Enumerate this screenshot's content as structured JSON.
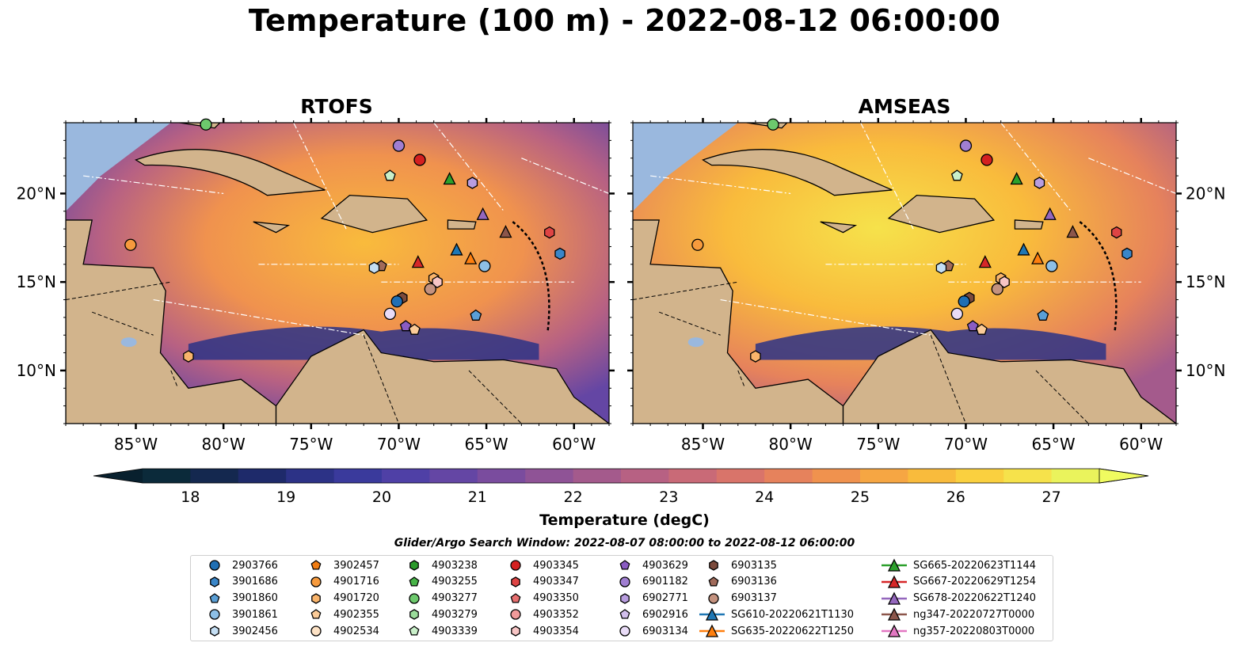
{
  "title": "Temperature (100 m) - 2022-08-12 06:00:00",
  "panels": [
    {
      "title": "RTOFS"
    },
    {
      "title": "AMSEAS"
    }
  ],
  "chart_data": {
    "type": "heatmap",
    "xaxis": {
      "ticks": [
        -85,
        -80,
        -75,
        -70,
        -65,
        -60
      ],
      "tick_labels": [
        "85°W",
        "80°W",
        "75°W",
        "70°W",
        "65°W",
        "60°W"
      ],
      "range": [
        -89,
        -58
      ]
    },
    "yaxis": {
      "ticks": [
        10,
        15,
        20
      ],
      "tick_labels": [
        "10°N",
        "15°N",
        "20°N"
      ],
      "range": [
        7,
        24
      ]
    },
    "colorbar": {
      "label": "Temperature (degC)",
      "min": 17.5,
      "max": 27.5,
      "ticks": [
        18,
        19,
        20,
        21,
        22,
        23,
        24,
        25,
        26,
        27
      ],
      "colors": [
        "#0b2a3a",
        "#14284f",
        "#1e2a6a",
        "#2c3286",
        "#3a3a9c",
        "#4f40a6",
        "#6446a4",
        "#7a4c9e",
        "#8f5396",
        "#a45a8c",
        "#b76183",
        "#c96a77",
        "#d9746a",
        "#e6825c",
        "#f0924e",
        "#f6a643",
        "#f9bb3c",
        "#fad03f",
        "#f6e24b",
        "#eaf35c"
      ]
    },
    "legend_title": "Glider/Argo Search Window: 2022-08-07 08:00:00 to 2022-08-12 06:00:00",
    "legend": [
      {
        "label": "2903766",
        "marker": "circle",
        "color": "#1f6fb4"
      },
      {
        "label": "3901686",
        "marker": "hexagon",
        "color": "#3a86c8"
      },
      {
        "label": "3901860",
        "marker": "pentagon",
        "color": "#5a9fd6"
      },
      {
        "label": "3901861",
        "marker": "circle",
        "color": "#8dbfe6"
      },
      {
        "label": "3902456",
        "marker": "hexagon",
        "color": "#c4def3"
      },
      {
        "label": "3902457",
        "marker": "pentagon",
        "color": "#f07c12"
      },
      {
        "label": "4901716",
        "marker": "circle",
        "color": "#f69a3d"
      },
      {
        "label": "4901720",
        "marker": "hexagon",
        "color": "#f9b46b"
      },
      {
        "label": "4902355",
        "marker": "pentagon",
        "color": "#fbcb98"
      },
      {
        "label": "4902534",
        "marker": "circle",
        "color": "#fde2c5"
      },
      {
        "label": "4903238",
        "marker": "hexagon",
        "color": "#2a9a2a"
      },
      {
        "label": "4903255",
        "marker": "pentagon",
        "color": "#47b347"
      },
      {
        "label": "4903277",
        "marker": "circle",
        "color": "#6dc96d"
      },
      {
        "label": "4903279",
        "marker": "hexagon",
        "color": "#9bdc9b"
      },
      {
        "label": "4903339",
        "marker": "pentagon",
        "color": "#c9efc9"
      },
      {
        "label": "4903345",
        "marker": "circle",
        "color": "#d42020"
      },
      {
        "label": "4903347",
        "marker": "hexagon",
        "color": "#de4444"
      },
      {
        "label": "4903350",
        "marker": "pentagon",
        "color": "#e76f6f"
      },
      {
        "label": "4903352",
        "marker": "circle",
        "color": "#f09a9a"
      },
      {
        "label": "4903354",
        "marker": "hexagon",
        "color": "#f7c5c5"
      },
      {
        "label": "4903629",
        "marker": "pentagon",
        "color": "#8a5cc2"
      },
      {
        "label": "6901182",
        "marker": "circle",
        "color": "#a07ed1"
      },
      {
        "label": "6902771",
        "marker": "hexagon",
        "color": "#b89ddf"
      },
      {
        "label": "6902916",
        "marker": "pentagon",
        "color": "#d2bfec"
      },
      {
        "label": "6903134",
        "marker": "circle",
        "color": "#e9dcf7"
      },
      {
        "label": "6903135",
        "marker": "hexagon",
        "color": "#7b4a3c"
      },
      {
        "label": "6903136",
        "marker": "pentagon",
        "color": "#a06a5a"
      },
      {
        "label": "6903137",
        "marker": "circle",
        "color": "#c4927f"
      },
      {
        "label": "SG610-20220621T1130",
        "marker": "triangle-line",
        "color": "#1f77b4"
      },
      {
        "label": "SG635-20220622T1250",
        "marker": "triangle-line",
        "color": "#ff7f0e"
      },
      {
        "label": "SG665-20220623T1144",
        "marker": "triangle-line",
        "color": "#2ca02c"
      },
      {
        "label": "SG667-20220629T1254",
        "marker": "triangle-line",
        "color": "#d62728"
      },
      {
        "label": "SG678-20220622T1240",
        "marker": "triangle-line",
        "color": "#9467bd"
      },
      {
        "label": "ng347-20220727T0000",
        "marker": "triangle-line",
        "color": "#8c564b"
      },
      {
        "label": "ng357-20220803T0000",
        "marker": "triangle-line",
        "color": "#e377c2"
      }
    ],
    "platforms": [
      {
        "id": "4903277",
        "lon": -81.0,
        "lat": 23.9
      },
      {
        "id": "6901182",
        "lon": -70.0,
        "lat": 22.7
      },
      {
        "id": "4903345",
        "lon": -68.8,
        "lat": 21.9
      },
      {
        "id": "4903339",
        "lon": -70.5,
        "lat": 21.0
      },
      {
        "id": "6902771",
        "lon": -65.8,
        "lat": 20.6
      },
      {
        "id": "SG665-20220623T1144",
        "lon": -67.1,
        "lat": 20.8
      },
      {
        "id": "SG678-20220622T1240",
        "lon": -65.2,
        "lat": 18.8
      },
      {
        "id": "ng347-20220727T0000",
        "lon": -63.9,
        "lat": 17.8
      },
      {
        "id": "4903347",
        "lon": -61.4,
        "lat": 17.8
      },
      {
        "id": "4901716",
        "lon": -85.3,
        "lat": 17.1
      },
      {
        "id": "SG610-20220621T1130",
        "lon": -66.7,
        "lat": 16.8
      },
      {
        "id": "3901686",
        "lon": -60.8,
        "lat": 16.6
      },
      {
        "id": "SG635-20220622T1250",
        "lon": -65.9,
        "lat": 16.3
      },
      {
        "id": "SG667-20220629T1254",
        "lon": -68.9,
        "lat": 16.1
      },
      {
        "id": "3901861",
        "lon": -65.1,
        "lat": 15.9
      },
      {
        "id": "6903136",
        "lon": -71.0,
        "lat": 15.9
      },
      {
        "id": "3902456",
        "lon": -71.4,
        "lat": 15.8
      },
      {
        "id": "4901720",
        "lon": -68.0,
        "lat": 15.2
      },
      {
        "id": "4903354",
        "lon": -67.8,
        "lat": 15.0
      },
      {
        "id": "6903137",
        "lon": -68.2,
        "lat": 14.6
      },
      {
        "id": "6903135",
        "lon": -69.8,
        "lat": 14.1
      },
      {
        "id": "2903766",
        "lon": -70.1,
        "lat": 13.9
      },
      {
        "id": "6903134",
        "lon": -70.5,
        "lat": 13.2
      },
      {
        "id": "3901860",
        "lon": -65.6,
        "lat": 13.1
      },
      {
        "id": "4903629",
        "lon": -69.6,
        "lat": 12.5
      },
      {
        "id": "4902355",
        "lon": -69.1,
        "lat": 12.3
      },
      {
        "id": "4901720b",
        "lon": -82.0,
        "lat": 10.8
      }
    ]
  }
}
